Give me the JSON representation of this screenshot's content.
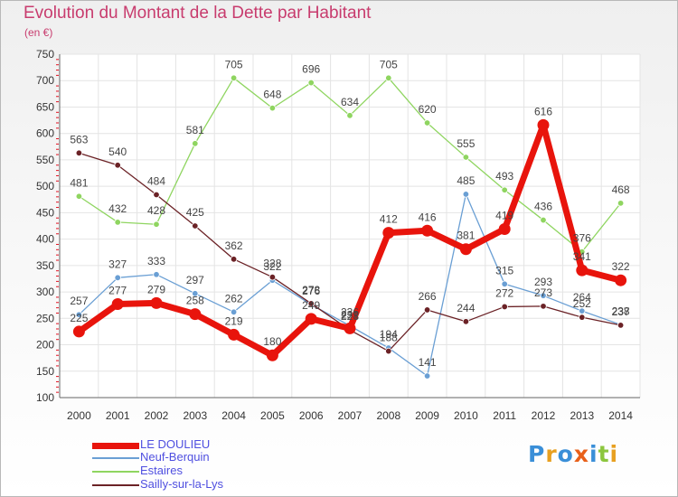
{
  "chart_data": {
    "type": "line",
    "title": "Evolution du Montant de la Dette par Habitant",
    "subtitle": "(en €)",
    "categories": [
      "2000",
      "2001",
      "2002",
      "2003",
      "2004",
      "2005",
      "2006",
      "2007",
      "2008",
      "2009",
      "2010",
      "2011",
      "2012",
      "2013",
      "2014"
    ],
    "ylim": [
      100,
      750
    ],
    "yticks": [
      100,
      150,
      200,
      250,
      300,
      350,
      400,
      450,
      500,
      550,
      600,
      650,
      700,
      750
    ],
    "grid": true,
    "legend_position": "bottom-left",
    "series": [
      {
        "name": "LE DOULIEU",
        "color": "#e8140c",
        "values": [
          225,
          277,
          279,
          258,
          219,
          180,
          249,
          231,
          412,
          416,
          381,
          419,
          616,
          341,
          322
        ]
      },
      {
        "name": "Neuf-Berquin",
        "color": "#6a9fd4",
        "values": [
          257,
          327,
          333,
          297,
          262,
          322,
          276,
          236,
          194,
          141,
          485,
          315,
          293,
          264,
          238
        ]
      },
      {
        "name": "Estaires",
        "color": "#8fd560",
        "values": [
          481,
          432,
          428,
          581,
          705,
          648,
          696,
          634,
          705,
          620,
          555,
          493,
          436,
          376,
          468
        ]
      },
      {
        "name": "Sailly-sur-la-Lys",
        "color": "#6b2226",
        "values": [
          563,
          540,
          484,
          425,
          362,
          328,
          278,
          228,
          188,
          266,
          244,
          272,
          273,
          252,
          237
        ]
      }
    ]
  },
  "logo": {
    "letters": [
      {
        "ch": "P",
        "color": "#3a8fd8"
      },
      {
        "ch": "r",
        "color": "#e8a020"
      },
      {
        "ch": "o",
        "color": "#3a8fd8"
      },
      {
        "ch": "x",
        "color": "#e8601a"
      },
      {
        "ch": "i",
        "color": "#3a8fd8"
      },
      {
        "ch": "t",
        "color": "#8cc63e"
      },
      {
        "ch": "i",
        "color": "#e8a020"
      }
    ]
  }
}
